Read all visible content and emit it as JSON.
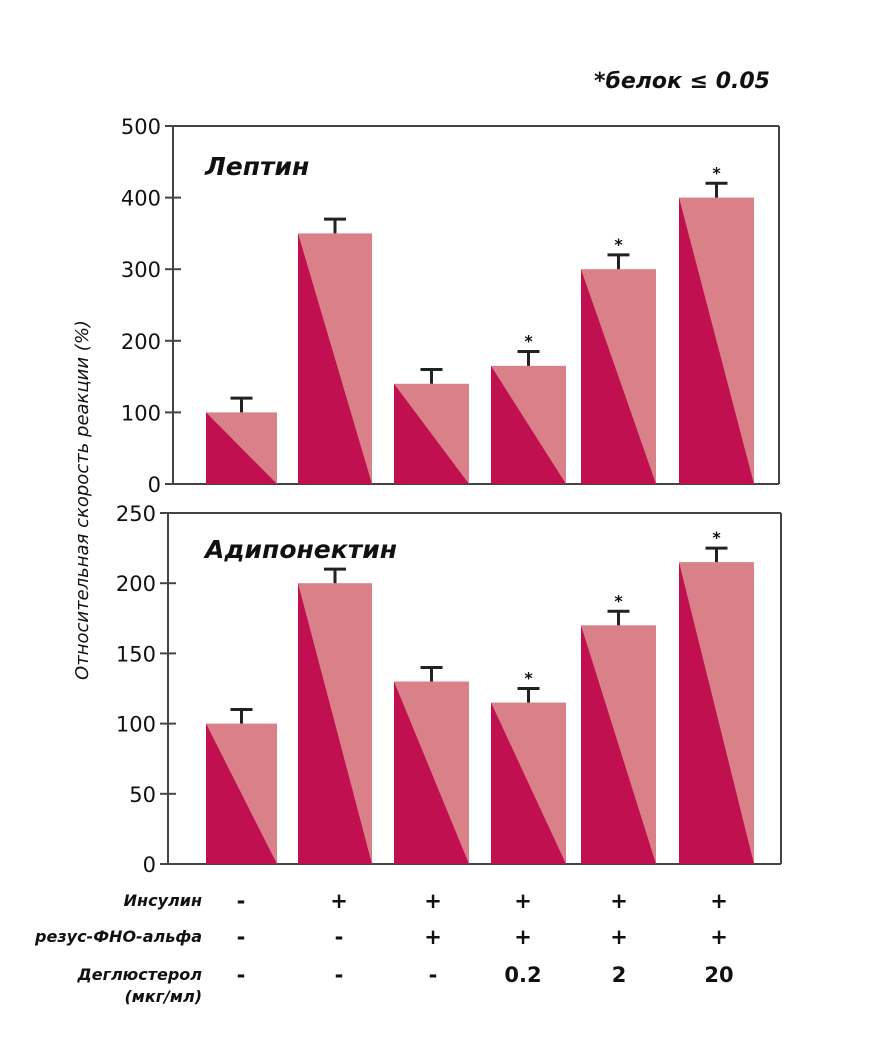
{
  "note": "*белок ≤ 0.05",
  "colors": {
    "bar_dark": "#c0104f",
    "bar_light": "#d98088",
    "axis": "#444444",
    "error": "#222222"
  },
  "chart_data": [
    {
      "type": "bar",
      "title": "Лептин",
      "ylabel": "Относительная скорость реакции (%)",
      "ylim": [
        0,
        500
      ],
      "yticks": [
        0,
        100,
        200,
        300,
        400,
        500
      ],
      "categories": [
        "1",
        "2",
        "3",
        "4",
        "5",
        "6"
      ],
      "values": [
        100,
        350,
        140,
        165,
        300,
        400
      ],
      "errors": [
        20,
        20,
        20,
        20,
        20,
        20
      ],
      "significant": [
        false,
        false,
        false,
        true,
        true,
        true
      ]
    },
    {
      "type": "bar",
      "title": "Адипонектин",
      "ylabel": "Относительная скорость реакции (%)",
      "ylim": [
        0,
        250
      ],
      "yticks": [
        0,
        50,
        100,
        150,
        200,
        250
      ],
      "categories": [
        "1",
        "2",
        "3",
        "4",
        "5",
        "6"
      ],
      "values": [
        100,
        200,
        130,
        115,
        170,
        215
      ],
      "errors": [
        10,
        10,
        10,
        10,
        10,
        10
      ],
      "significant": [
        false,
        false,
        false,
        true,
        true,
        true
      ]
    }
  ],
  "conditions_table": {
    "rows": [
      {
        "label": "Инсулин",
        "values": [
          "-",
          "+",
          "+",
          "+",
          "+",
          "+"
        ]
      },
      {
        "label": "резус-ФНО-альфа",
        "values": [
          "-",
          "-",
          "+",
          "+",
          "+",
          "+"
        ]
      },
      {
        "label": "Деглюстерол",
        "label2": "(мкг/мл)",
        "values": [
          "-",
          "-",
          "-",
          "0.2",
          "2",
          "20"
        ]
      }
    ]
  }
}
